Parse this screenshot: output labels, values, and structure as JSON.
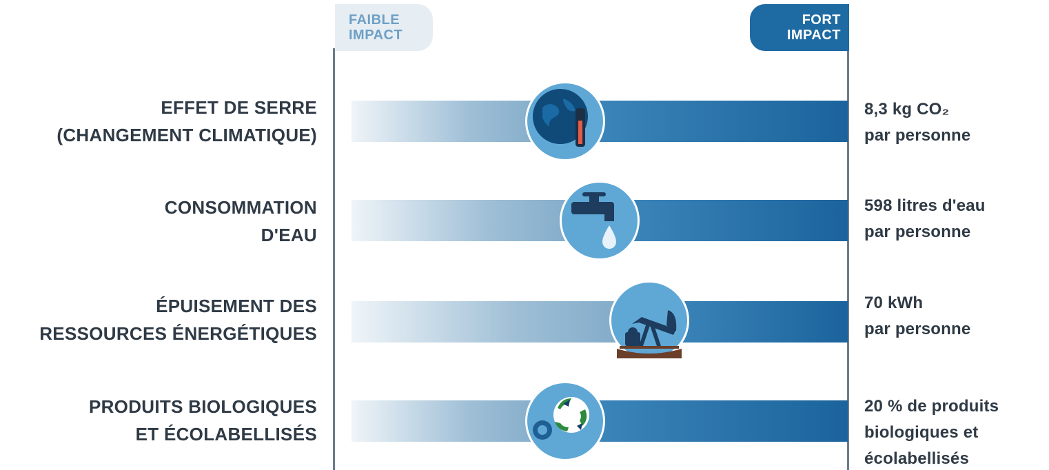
{
  "scale": {
    "low_line1": "FAIBLE",
    "low_line2": "IMPACT",
    "high_line1": "FORT",
    "high_line2": "IMPACT"
  },
  "rows": [
    {
      "label_line1": "EFFET DE SERRE",
      "label_line2": "(CHANGEMENT CLIMATIQUE)",
      "value_line1": "8,3 kg CO₂",
      "value_line2": "par personne",
      "value_line3": "",
      "icon": "globe-thermometer-icon",
      "impact_level": 0.43
    },
    {
      "label_line1": "CONSOMMATION",
      "label_line2": "D'EAU",
      "value_line1": "598 litres d'eau",
      "value_line2": "par personne",
      "value_line3": "",
      "icon": "water-tap-icon",
      "impact_level": 0.5
    },
    {
      "label_line1": "ÉPUISEMENT DES",
      "label_line2": "RESSOURCES ÉNERGÉTIQUES",
      "value_line1": "70 kWh",
      "value_line2": "par personne",
      "value_line3": "",
      "icon": "oil-pump-icon",
      "impact_level": 0.6
    },
    {
      "label_line1": "PRODUITS BIOLOGIQUES",
      "label_line2": "ET ÉCOLABELLISÉS",
      "value_line1": "20 % de produits",
      "value_line2": "biologiques et",
      "value_line3": "écolabellisés",
      "icon": "recycle-label-icon",
      "impact_level": 0.43
    }
  ],
  "colors": {
    "dark_blue": "#1e6aa2",
    "marker_blue": "#5fa8d6",
    "light_blue": "#e6eef4",
    "text": "#2f3a45"
  }
}
